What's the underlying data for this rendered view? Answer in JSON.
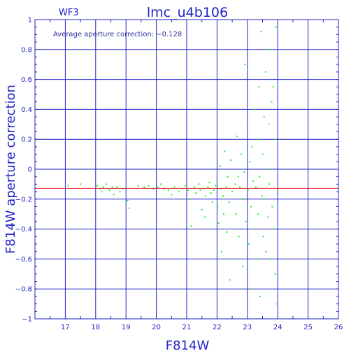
{
  "chart_data": {
    "type": "scatter",
    "title": "lmc_u4b106",
    "subtitle": "WF3",
    "annotation": "Average aperture correction: −0.128",
    "xlabel": "F814W",
    "ylabel": "F814W aperture correction",
    "xlim": [
      16,
      26
    ],
    "ylim": [
      -1,
      1
    ],
    "xticks": [
      "17",
      "18",
      "19",
      "20",
      "21",
      "22",
      "23",
      "24",
      "25",
      "26"
    ],
    "yticks": [
      "1",
      "0.8",
      "0.6",
      "0.4",
      "0.2",
      "0",
      "−0.2",
      "−0.4",
      "−0.6",
      "−0.8",
      "−1"
    ],
    "grid": true,
    "reference_line_y": -0.128,
    "colors": {
      "axes": "#1f1fc8",
      "points": "#22ee22",
      "reference_line": "#e02020"
    },
    "points": [
      [
        17.1,
        -0.11
      ],
      [
        17.5,
        -0.1
      ],
      [
        18.05,
        -0.11
      ],
      [
        18.15,
        -0.13
      ],
      [
        18.2,
        -0.15
      ],
      [
        18.25,
        -0.12
      ],
      [
        18.35,
        -0.1
      ],
      [
        18.45,
        -0.14
      ],
      [
        18.55,
        -0.12
      ],
      [
        18.6,
        -0.17
      ],
      [
        18.7,
        -0.12
      ],
      [
        18.8,
        -0.15
      ],
      [
        18.9,
        -0.13
      ],
      [
        19.05,
        -0.21
      ],
      [
        19.1,
        -0.26
      ],
      [
        19.4,
        -0.11
      ],
      [
        19.6,
        -0.12
      ],
      [
        19.75,
        -0.11
      ],
      [
        19.9,
        -0.13
      ],
      [
        20.05,
        -0.12
      ],
      [
        20.15,
        -0.1
      ],
      [
        20.25,
        -0.13
      ],
      [
        20.4,
        -0.14
      ],
      [
        20.5,
        -0.17
      ],
      [
        20.6,
        -0.12
      ],
      [
        20.75,
        -0.15
      ],
      [
        20.85,
        -0.13
      ],
      [
        20.95,
        -0.11
      ],
      [
        21.05,
        -0.14
      ],
      [
        21.1,
        -0.2
      ],
      [
        21.15,
        -0.38
      ],
      [
        21.25,
        -0.12
      ],
      [
        21.3,
        -0.16
      ],
      [
        21.4,
        -0.1
      ],
      [
        21.45,
        -0.14
      ],
      [
        21.5,
        -0.27
      ],
      [
        21.55,
        -0.13
      ],
      [
        21.6,
        -0.32
      ],
      [
        21.62,
        -0.18
      ],
      [
        21.7,
        -0.12
      ],
      [
        21.75,
        -0.09
      ],
      [
        21.8,
        -0.16
      ],
      [
        21.85,
        -0.22
      ],
      [
        21.9,
        -0.14
      ],
      [
        21.95,
        -0.11
      ],
      [
        22.0,
        -0.08
      ],
      [
        22.02,
        -0.25
      ],
      [
        22.05,
        -0.36
      ],
      [
        22.1,
        0.02
      ],
      [
        22.12,
        -0.13
      ],
      [
        22.15,
        -0.55
      ],
      [
        22.2,
        -0.18
      ],
      [
        22.22,
        -0.3
      ],
      [
        22.25,
        0.12
      ],
      [
        22.3,
        -0.12
      ],
      [
        22.32,
        -0.42
      ],
      [
        22.35,
        -0.05
      ],
      [
        22.4,
        -0.22
      ],
      [
        22.42,
        -0.74
      ],
      [
        22.45,
        0.06
      ],
      [
        22.5,
        -0.15
      ],
      [
        22.55,
        -0.6
      ],
      [
        22.6,
        -0.1
      ],
      [
        22.62,
        -0.3
      ],
      [
        22.65,
        0.22
      ],
      [
        22.7,
        -0.05
      ],
      [
        22.72,
        -0.45
      ],
      [
        22.75,
        -0.12
      ],
      [
        22.8,
        0.1
      ],
      [
        22.82,
        -0.2
      ],
      [
        22.85,
        -0.65
      ],
      [
        22.9,
        -0.02
      ],
      [
        22.92,
        0.7
      ],
      [
        22.95,
        -0.35
      ],
      [
        23.0,
        0.3
      ],
      [
        23.02,
        -0.14
      ],
      [
        23.05,
        -0.5
      ],
      [
        23.08,
        0.05
      ],
      [
        23.1,
        -0.8
      ],
      [
        23.12,
        -0.25
      ],
      [
        23.15,
        0.15
      ],
      [
        23.2,
        -0.08
      ],
      [
        23.22,
        -0.4
      ],
      [
        23.25,
        0.4
      ],
      [
        23.28,
        -0.12
      ],
      [
        23.3,
        -0.6
      ],
      [
        23.32,
        0.2
      ],
      [
        23.35,
        -0.3
      ],
      [
        23.38,
        0.55
      ],
      [
        23.4,
        -0.05
      ],
      [
        23.42,
        -0.85
      ],
      [
        23.45,
        0.92
      ],
      [
        23.48,
        -0.18
      ],
      [
        23.5,
        0.1
      ],
      [
        23.52,
        -0.45
      ],
      [
        23.55,
        0.35
      ],
      [
        23.58,
        -0.2
      ],
      [
        23.6,
        0.65
      ],
      [
        23.62,
        -0.55
      ],
      [
        23.65,
        0.0
      ],
      [
        23.68,
        -0.32
      ],
      [
        23.7,
        0.3
      ],
      [
        23.72,
        -0.1
      ],
      [
        23.75,
        0.8
      ],
      [
        23.78,
        -0.6
      ],
      [
        23.8,
        0.45
      ],
      [
        23.82,
        -0.25
      ],
      [
        23.85,
        0.55
      ],
      [
        23.88,
        -0.4
      ],
      [
        23.9,
        0.2
      ],
      [
        23.92,
        -0.7
      ],
      [
        23.95,
        0.95
      ],
      [
        23.98,
        -0.9
      ],
      [
        24.0,
        -0.15
      ]
    ]
  }
}
